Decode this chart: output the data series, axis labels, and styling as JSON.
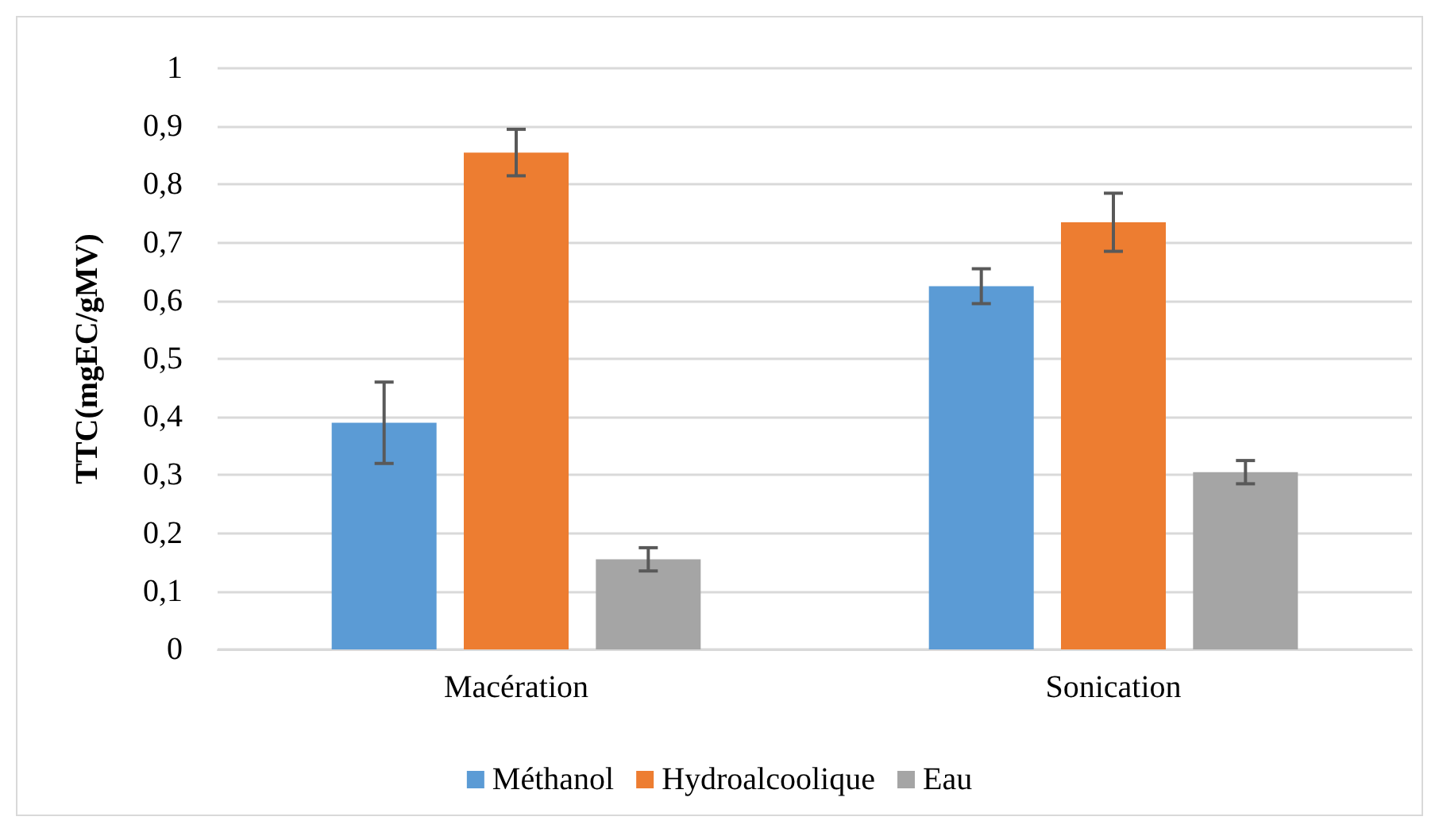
{
  "chart_data": {
    "type": "bar",
    "ylabel": "TTC(mgEC/gMV)",
    "categories": [
      "Macération",
      "Sonication"
    ],
    "series": [
      {
        "name": "Méthanol",
        "color": "#5b9bd5",
        "values": [
          0.39,
          0.625
        ],
        "errors": [
          0.07,
          0.03
        ]
      },
      {
        "name": "Hydroalcoolique",
        "color": "#ed7d31",
        "values": [
          0.855,
          0.735
        ],
        "errors": [
          0.04,
          0.05
        ]
      },
      {
        "name": "Eau",
        "color": "#a5a5a5",
        "values": [
          0.155,
          0.305
        ],
        "errors": [
          0.02,
          0.02
        ]
      }
    ],
    "ylim": [
      0,
      1
    ],
    "yticks": [
      0,
      {
        "value": 0.1,
        "label": "0,1"
      },
      {
        "value": 0.2,
        "label": "0,2"
      },
      {
        "value": 0.3,
        "label": "0,3"
      },
      {
        "value": 0.4,
        "label": "0,4"
      },
      {
        "value": 0.5,
        "label": "0,5"
      },
      {
        "value": 0.6,
        "label": "0,6"
      },
      {
        "value": 0.7,
        "label": "0,7"
      },
      {
        "value": 0.8,
        "label": "0,8"
      },
      {
        "value": 0.9,
        "label": "0,9"
      },
      1
    ],
    "grid": "y",
    "legend": "bottom"
  }
}
